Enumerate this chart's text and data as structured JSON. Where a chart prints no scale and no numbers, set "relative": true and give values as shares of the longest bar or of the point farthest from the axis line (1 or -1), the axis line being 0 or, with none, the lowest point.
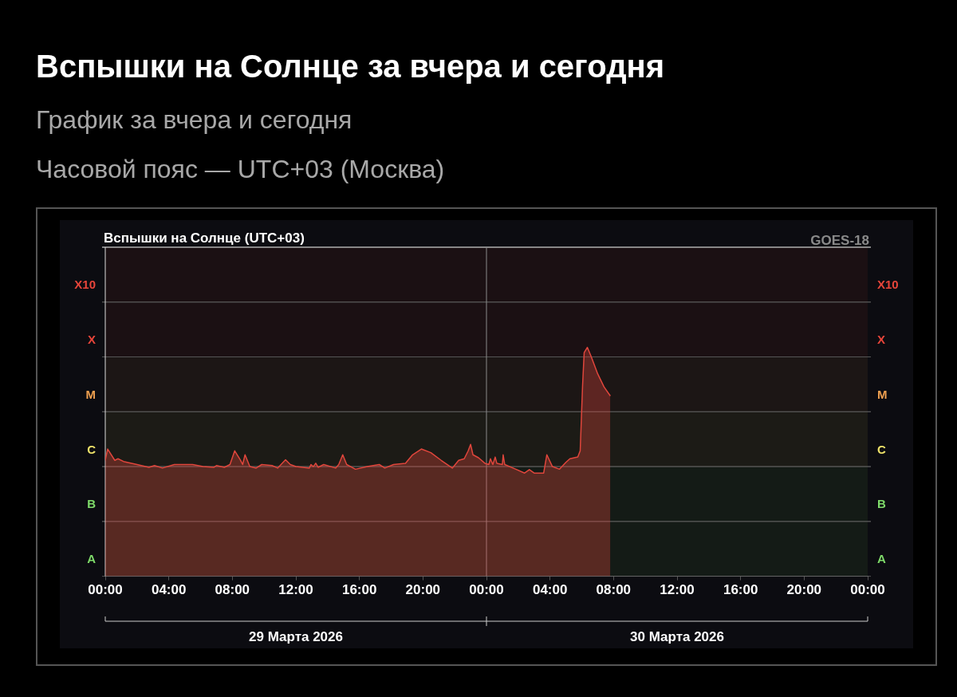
{
  "chart_data": {
    "type": "area",
    "title": "Вспышки на Солнце за вчера и сегодня",
    "subtitle": "График за вчера и сегодня",
    "annotations": [
      "Часовой пояс — UTC+03 (Москва)",
      "Вспышки на Солнце (UTC+03)",
      "GOES-18",
      "29 Марта 2026",
      "30 Марта 2026"
    ],
    "relative": true,
    "log": "y",
    "series": [
      {
        "color": "#e0463c",
        "x": [
          "2026-03-29T00:00",
          "2026-03-29T00:09",
          "2026-03-29T00:36",
          "2026-03-29T00:48",
          "2026-03-29T01:09",
          "2026-03-29T02:00",
          "2026-03-29T02:45",
          "2026-03-29T03:06",
          "2026-03-29T03:36",
          "2026-03-29T04:21",
          "2026-03-29T05:30",
          "2026-03-29T06:09",
          "2026-03-29T06:51",
          "2026-03-29T07:00",
          "2026-03-29T07:30",
          "2026-03-29T07:51",
          "2026-03-29T08:09",
          "2026-03-29T08:30",
          "2026-03-29T08:39",
          "2026-03-29T08:48",
          "2026-03-29T09:06",
          "2026-03-29T09:30",
          "2026-03-29T09:51",
          "2026-03-29T10:30",
          "2026-03-29T10:51",
          "2026-03-29T11:21",
          "2026-03-29T11:39",
          "2026-03-29T12:00",
          "2026-03-29T12:51",
          "2026-03-29T12:57",
          "2026-03-29T13:06",
          "2026-03-29T13:15",
          "2026-03-29T13:24",
          "2026-03-29T13:45",
          "2026-03-29T14:30",
          "2026-03-29T14:42",
          "2026-03-29T14:57",
          "2026-03-29T15:12",
          "2026-03-29T15:45",
          "2026-03-29T16:30",
          "2026-03-29T17:15",
          "2026-03-29T17:36",
          "2026-03-29T18:09",
          "2026-03-29T18:54",
          "2026-03-29T19:21",
          "2026-03-29T19:54",
          "2026-03-29T20:30",
          "2026-03-29T21:09",
          "2026-03-29T21:51",
          "2026-03-29T22:15",
          "2026-03-29T22:36",
          "2026-03-29T22:51",
          "2026-03-29T23:00",
          "2026-03-29T23:09",
          "2026-03-29T23:30",
          "2026-03-29T23:54",
          "2026-03-30T00:09",
          "2026-03-30T00:15",
          "2026-03-30T00:24",
          "2026-03-30T00:33",
          "2026-03-30T00:39",
          "2026-03-30T01:00",
          "2026-03-30T01:03",
          "2026-03-30T01:09",
          "2026-03-30T01:51",
          "2026-03-30T02:24",
          "2026-03-30T02:42",
          "2026-03-30T03:00",
          "2026-03-30T03:36",
          "2026-03-30T03:48",
          "2026-03-30T04:09",
          "2026-03-30T04:36",
          "2026-03-30T05:00",
          "2026-03-30T05:15",
          "2026-03-30T05:45",
          "2026-03-30T05:54",
          "2026-03-30T06:03",
          "2026-03-30T06:09",
          "2026-03-30T06:21",
          "2026-03-30T06:36",
          "2026-03-30T07:00",
          "2026-03-30T07:24",
          "2026-03-30T07:48"
        ],
        "values": [
          0.0087,
          0.014,
          0.0087,
          0.0093,
          0.0083,
          0.0073,
          0.0065,
          0.007,
          0.0063,
          0.0073,
          0.0073,
          0.0067,
          0.0065,
          0.007,
          0.0065,
          0.0073,
          0.013,
          0.0089,
          0.0073,
          0.011,
          0.0067,
          0.0063,
          0.0073,
          0.007,
          0.0063,
          0.0089,
          0.0073,
          0.0067,
          0.0063,
          0.0073,
          0.0067,
          0.0077,
          0.0065,
          0.0073,
          0.0063,
          0.0073,
          0.011,
          0.0073,
          0.006,
          0.0067,
          0.0073,
          0.0063,
          0.0073,
          0.0077,
          0.011,
          0.014,
          0.012,
          0.0087,
          0.0063,
          0.0087,
          0.0093,
          0.013,
          0.017,
          0.011,
          0.0097,
          0.0077,
          0.0073,
          0.0093,
          0.0073,
          0.01,
          0.0077,
          0.0073,
          0.011,
          0.0073,
          0.006,
          0.0051,
          0.0059,
          0.0051,
          0.0051,
          0.011,
          0.0067,
          0.006,
          0.008,
          0.0093,
          0.01,
          0.013,
          0.2,
          0.8,
          1,
          0.67,
          0.33,
          0.19,
          0.13
        ]
      }
    ],
    "xlim": [
      "2026-03-29T00:00",
      "2026-03-31T00:00"
    ],
    "xticks": [
      {
        "value": "2026-03-29T00:00",
        "label": "00:00"
      },
      {
        "value": "2026-03-29T04:00",
        "label": "04:00"
      },
      {
        "value": "2026-03-29T08:00",
        "label": "08:00"
      },
      {
        "value": "2026-03-29T12:00",
        "label": "12:00"
      },
      {
        "value": "2026-03-29T16:00",
        "label": "16:00"
      },
      {
        "value": "2026-03-29T20:00",
        "label": "20:00"
      },
      {
        "value": "2026-03-30T00:00",
        "label": "00:00"
      },
      {
        "value": "2026-03-30T04:00",
        "label": "04:00"
      },
      {
        "value": "2026-03-30T08:00",
        "label": "08:00"
      },
      {
        "value": "2026-03-30T12:00",
        "label": "12:00"
      },
      {
        "value": "2026-03-30T16:00",
        "label": "16:00"
      },
      {
        "value": "2026-03-30T20:00",
        "label": "20:00"
      },
      {
        "value": "2026-03-31T00:00",
        "label": "00:00"
      }
    ],
    "bands": [
      {
        "axis": "y",
        "from": 6.7e-05,
        "to": 0.00067,
        "label": "A",
        "color": "#7fdc6a"
      },
      {
        "axis": "y",
        "from": 0.00067,
        "to": 0.0067,
        "label": "B",
        "color": "#7fdc6a"
      },
      {
        "axis": "y",
        "from": 0.0067,
        "to": 0.067,
        "label": "C",
        "color": "#f0e46a"
      },
      {
        "axis": "y",
        "from": 0.067,
        "to": 0.67,
        "label": "M",
        "color": "#f0a050"
      },
      {
        "axis": "y",
        "from": 0.67,
        "to": 6.7,
        "label": "X",
        "color": "#e8453a"
      },
      {
        "axis": "y",
        "from": 6.7,
        "to": 67,
        "label": "X10",
        "color": "#e8453a"
      }
    ],
    "grid": "y",
    "legend": false,
    "marker": "none",
    "ref_lines": [
      {
        "axis": "x",
        "value": "2026-03-30T00:00",
        "color": "#8a8a8a"
      }
    ]
  }
}
